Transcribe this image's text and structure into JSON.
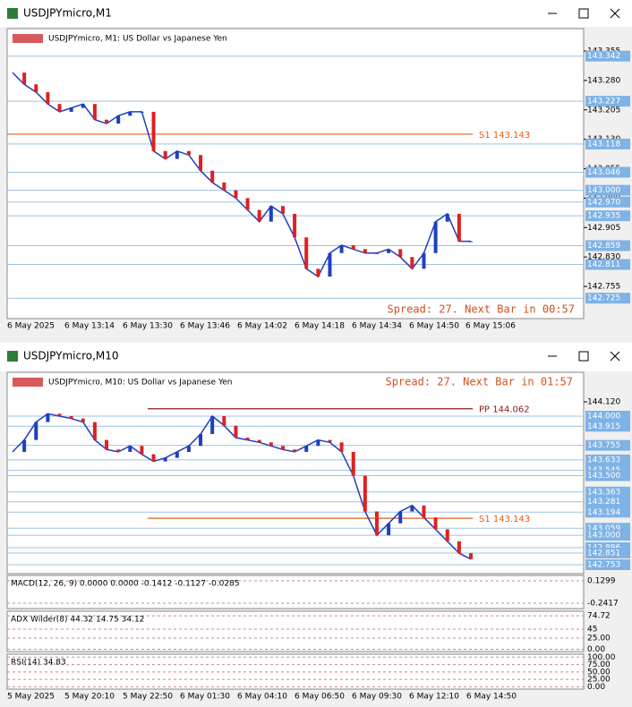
{
  "windows": [
    {
      "title": "USDJPYmicro,M1",
      "chart_label": "USDJPYmicro, M1:  US Dollar vs Japanese Yen",
      "spread": "Spread: 27. Next Bar in 00:57",
      "ylim": [
        142.673,
        143.412
      ],
      "price_axis": [
        143.355,
        {
          "value": 143.28,
          "label": "143.280"
        },
        143.205,
        {
          "value": 143.13,
          "label": "143.130"
        },
        143.055,
        {
          "value": 142.98,
          "label": "142.980"
        },
        142.905,
        {
          "value": 142.83,
          "label": "142.830"
        },
        142.755
      ],
      "price_tags": [
        143.342,
        143.227,
        143.118,
        143.046,
        {
          "value": 143,
          "label": "143.000"
        },
        {
          "value": 142.97,
          "label": "142.970"
        },
        142.935,
        142.859,
        142.811,
        142.725
      ],
      "levels": [
        {
          "label": "S1 143.143",
          "value": 143.143,
          "color": "#e0601a"
        }
      ],
      "time_labels": [
        "6 May 2025",
        "6 May 13:14",
        "6 May 13:30",
        "6 May 13:46",
        "6 May 14:02",
        "6 May 14:18",
        "6 May 14:34",
        "6 May 14:50",
        "6 May 15:06"
      ],
      "prices": [
        143.3,
        143.27,
        143.25,
        143.22,
        143.2,
        143.21,
        143.22,
        143.18,
        143.17,
        143.19,
        143.2,
        143.2,
        143.1,
        143.08,
        143.1,
        143.09,
        143.05,
        143.02,
        143.0,
        142.98,
        142.95,
        142.92,
        142.96,
        142.94,
        142.88,
        142.8,
        142.78,
        142.84,
        142.86,
        142.85,
        142.84,
        142.84,
        142.85,
        142.83,
        142.8,
        142.84,
        142.92,
        142.94,
        142.87,
        142.87
      ],
      "panels": []
    },
    {
      "title": "USDJPYmicro,M10",
      "chart_label": "USDJPYmicro, M10:  US Dollar vs Japanese Yen",
      "spread": "Spread: 27. Next Bar in 01:57",
      "ylim": [
        142.678,
        144.368
      ],
      "price_axis": [
        {
          "value": 144.12,
          "label": "144.120"
        }
      ],
      "price_tags": [
        {
          "value": 144,
          "label": "144.000"
        },
        143.915,
        143.755,
        143.633,
        143.545,
        {
          "value": 143.5,
          "label": "143.500"
        },
        143.363,
        143.281,
        143.194,
        143.059,
        {
          "value": 143,
          "label": "143.000"
        },
        142.896,
        142.851,
        142.753
      ],
      "levels": [
        {
          "label": "PP 144.062",
          "value": 144.062,
          "color": "#8b1a1a"
        },
        {
          "label": "S1 143.143",
          "value": 143.143,
          "color": "#e0601a"
        }
      ],
      "time_labels": [
        "5 May 2025",
        "5 May 20:10",
        "5 May 22:50",
        "6 May 01:30",
        "6 May 04:10",
        "6 May 06:50",
        "6 May 09:30",
        "6 May 12:10",
        "6 May 14:50"
      ],
      "prices": [
        143.7,
        143.8,
        143.95,
        144.02,
        144.0,
        143.98,
        143.95,
        143.8,
        143.72,
        143.7,
        143.75,
        143.68,
        143.62,
        143.65,
        143.7,
        143.75,
        143.85,
        144.0,
        143.92,
        143.82,
        143.8,
        143.78,
        143.75,
        143.72,
        143.7,
        143.75,
        143.8,
        143.78,
        143.7,
        143.5,
        143.2,
        143.0,
        143.1,
        143.2,
        143.25,
        143.15,
        143.05,
        142.95,
        142.85,
        142.8
      ],
      "panels": [
        {
          "label": "MACD(12, 26, 9) 0.0000 0.0000 -0.1412 -0.1127 -0.0285",
          "ylim": [
            -0.331,
            0.219
          ],
          "ticks": [
            0.1299,
            -0.2417
          ]
        },
        {
          "label": "ADX Wilder(8) 44.32 14.75 34.12",
          "ylim": [
            -5,
            85
          ],
          "ticks": [
            74.72,
            45,
            {
              "value": 25,
              "label": "25.00"
            },
            {
              "value": 0,
              "label": "0.00"
            }
          ]
        },
        {
          "label": "RSI(14) 34.83",
          "ylim": [
            -8,
            110
          ],
          "ticks": [
            {
              "value": 100,
              "label": "100.00"
            },
            {
              "value": 75,
              "label": "75.00"
            },
            {
              "value": 50,
              "label": "50.00"
            },
            {
              "value": 25,
              "label": "25.00"
            },
            {
              "value": 0,
              "label": "0.00"
            }
          ]
        }
      ]
    }
  ]
}
